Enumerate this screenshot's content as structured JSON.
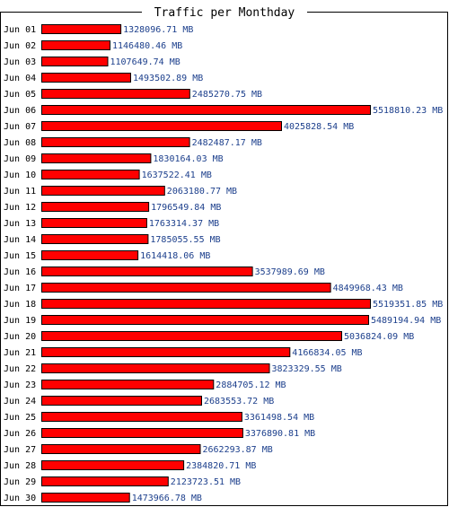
{
  "chart_data": {
    "type": "bar",
    "orientation": "horizontal",
    "title": "Traffic per Monthday",
    "unit": "MB",
    "bar_color": "#ff0000",
    "label_color": "#1c3f8c",
    "grid": false,
    "categories": [
      "Jun 01",
      "Jun 02",
      "Jun 03",
      "Jun 04",
      "Jun 05",
      "Jun 06",
      "Jun 07",
      "Jun 08",
      "Jun 09",
      "Jun 10",
      "Jun 11",
      "Jun 12",
      "Jun 13",
      "Jun 14",
      "Jun 15",
      "Jun 16",
      "Jun 17",
      "Jun 18",
      "Jun 19",
      "Jun 20",
      "Jun 21",
      "Jun 22",
      "Jun 23",
      "Jun 24",
      "Jun 25",
      "Jun 26",
      "Jun 27",
      "Jun 28",
      "Jun 29",
      "Jun 30"
    ],
    "values": [
      1328096.71,
      1146480.46,
      1107649.74,
      1493502.89,
      2485270.75,
      5518810.23,
      4025828.54,
      2482487.17,
      1830164.03,
      1637522.41,
      2063180.77,
      1796549.84,
      1763314.37,
      1785055.55,
      1614418.06,
      3537989.69,
      4849968.43,
      5519351.85,
      5489194.94,
      5036824.09,
      4166834.05,
      3823329.55,
      2884705.12,
      2683553.72,
      3361498.54,
      3376890.81,
      2662293.87,
      2384820.71,
      2123723.51,
      1473966.78
    ],
    "value_labels": [
      "1328096.71 MB",
      "1146480.46 MB",
      "1107649.74 MB",
      "1493502.89 MB",
      "2485270.75 MB",
      "5518810.23 MB",
      "4025828.54 MB",
      "2482487.17 MB",
      "1830164.03 MB",
      "1637522.41 MB",
      "2063180.77 MB",
      "1796549.84 MB",
      "1763314.37 MB",
      "1785055.55 MB",
      "1614418.06 MB",
      "3537989.69 MB",
      "4849968.43 MB",
      "5519351.85 MB",
      "5489194.94 MB",
      "5036824.09 MB",
      "4166834.05 MB",
      "3823329.55 MB",
      "2884705.12 MB",
      "2683553.72 MB",
      "3361498.54 MB",
      "3376890.81 MB",
      "2662293.87 MB",
      "2384820.71 MB",
      "2123723.51 MB",
      "1473966.78 MB"
    ]
  }
}
